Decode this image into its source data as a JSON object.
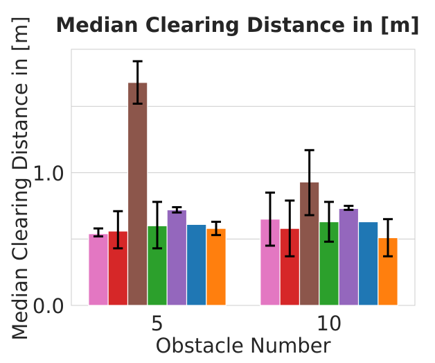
{
  "chart_data": {
    "type": "bar",
    "title": "Median Clearing Distance in [m]",
    "xlabel": "Obstacle Number",
    "ylabel": "Median Clearing Distance in [m]",
    "categories": [
      "5",
      "10"
    ],
    "ylim": [
      0,
      1.93
    ],
    "yticks": [
      0.0,
      1.0
    ],
    "ytick_labels": [
      "0.0",
      "1.0"
    ],
    "grid_lines": [
      0.5,
      1.0,
      1.5
    ],
    "grid": true,
    "series": [
      {
        "color": "#e377c2",
        "values": [
          0.54,
          0.65
        ],
        "errors": [
          [
            0.52,
            0.58
          ],
          [
            0.45,
            0.85
          ]
        ]
      },
      {
        "color": "#d62728",
        "values": [
          0.56,
          0.58
        ],
        "errors": [
          [
            0.43,
            0.71
          ],
          [
            0.37,
            0.79
          ]
        ]
      },
      {
        "color": "#8c564b",
        "values": [
          1.68,
          0.93
        ],
        "errors": [
          [
            1.52,
            1.84
          ],
          [
            0.68,
            1.17
          ]
        ]
      },
      {
        "color": "#2ca02c",
        "values": [
          0.6,
          0.63
        ],
        "errors": [
          [
            0.43,
            0.78
          ],
          [
            0.48,
            0.78
          ]
        ]
      },
      {
        "color": "#9467bd",
        "values": [
          0.72,
          0.73
        ],
        "errors": [
          [
            0.7,
            0.74
          ],
          [
            0.72,
            0.75
          ]
        ]
      },
      {
        "color": "#1f77b4",
        "values": [
          0.61,
          0.63
        ],
        "errors": null
      },
      {
        "color": "#ff7f0e",
        "values": [
          0.58,
          0.51
        ],
        "errors": [
          [
            0.53,
            0.63
          ],
          [
            0.37,
            0.65
          ]
        ]
      }
    ]
  }
}
